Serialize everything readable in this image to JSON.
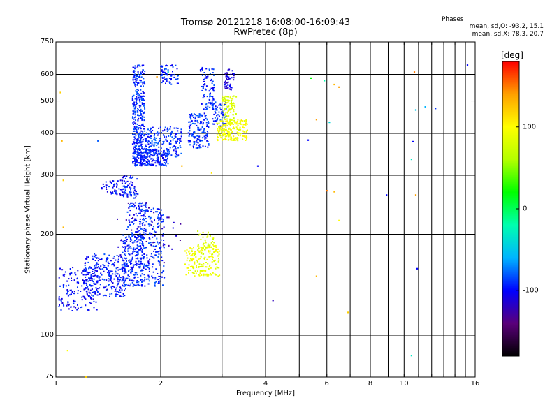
{
  "header": {
    "title": "Tromsø 20121218 16:08:00-16:09:43",
    "subtitle": "RwPretec (8p)",
    "stats_heading": "Phases",
    "stats_o": "mean, sd,O: -93.2, 15.1",
    "stats_x": "mean, sd,X: 78.3, 20.7"
  },
  "chart_data": {
    "type": "scatter",
    "xlabel": "Frequency [MHz]",
    "ylabel": "Stationary phase Virtual Height [km]",
    "x_scale": "log",
    "y_scale": "log",
    "xlim": [
      1,
      16
    ],
    "ylim": [
      75,
      750
    ],
    "x_ticks": [
      1,
      2,
      4,
      6,
      8,
      10,
      16
    ],
    "y_ticks": [
      75,
      100,
      200,
      300,
      400,
      500,
      600,
      750
    ],
    "x_grid": [
      1,
      2,
      3,
      4,
      5,
      6,
      7,
      8,
      9,
      10,
      11,
      12,
      13,
      14,
      15,
      16
    ],
    "y_grid": [
      100,
      200,
      300,
      400,
      500,
      600
    ],
    "colorbar": {
      "unit": "[deg]",
      "range": [
        -180,
        180
      ],
      "ticks": [
        -100,
        0,
        100
      ],
      "colors": [
        "#000000",
        "#5a007a",
        "#0000ff",
        "#00b4ff",
        "#00ffb0",
        "#00ff00",
        "#b4ff00",
        "#ffff00",
        "#ffa000",
        "#ff0000"
      ]
    },
    "o_trace_phase": -93.2,
    "x_trace_phase": 78.3,
    "clusters": [
      {
        "x": [
          1.02,
          1.32
        ],
        "y": [
          118,
          160
        ],
        "phase": -100,
        "count": 160
      },
      {
        "x": [
          1.2,
          1.6
        ],
        "y": [
          130,
          175
        ],
        "phase": -95,
        "count": 260
      },
      {
        "x": [
          1.55,
          1.8
        ],
        "y": [
          140,
          200
        ],
        "phase": -92,
        "count": 240
      },
      {
        "x": [
          1.75,
          2.05
        ],
        "y": [
          140,
          240
        ],
        "phase": -92,
        "count": 200
      },
      {
        "x": [
          1.6,
          1.82
        ],
        "y": [
          195,
          250
        ],
        "phase": -95,
        "count": 80
      },
      {
        "x": [
          1.35,
          1.65
        ],
        "y": [
          262,
          290
        ],
        "phase": -100,
        "count": 60
      },
      {
        "x": [
          1.55,
          1.72
        ],
        "y": [
          255,
          300
        ],
        "phase": -98,
        "count": 50
      },
      {
        "x": [
          1.66,
          1.8
        ],
        "y": [
          320,
          640
        ],
        "phase": -92,
        "count": 360
      },
      {
        "x": [
          1.68,
          2.1
        ],
        "y": [
          320,
          360
        ],
        "phase": -95,
        "count": 200
      },
      {
        "x": [
          1.8,
          2.3
        ],
        "y": [
          340,
          420
        ],
        "phase": -90,
        "count": 180
      },
      {
        "x": [
          2.0,
          2.25
        ],
        "y": [
          560,
          640
        ],
        "phase": -92,
        "count": 60
      },
      {
        "x": [
          2.4,
          2.75
        ],
        "y": [
          360,
          460
        ],
        "phase": -90,
        "count": 150
      },
      {
        "x": [
          2.6,
          2.85
        ],
        "y": [
          470,
          630
        ],
        "phase": -92,
        "count": 90
      },
      {
        "x": [
          2.8,
          3.1
        ],
        "y": [
          420,
          500
        ],
        "phase": -90,
        "count": 60
      },
      {
        "x": [
          3.05,
          3.25
        ],
        "y": [
          540,
          630
        ],
        "phase": -110,
        "count": 50
      },
      {
        "x": [
          2.9,
          3.55
        ],
        "y": [
          380,
          440
        ],
        "phase": 95,
        "count": 200
      },
      {
        "x": [
          3.0,
          3.3
        ],
        "y": [
          440,
          520
        ],
        "phase": 80,
        "count": 80
      },
      {
        "x": [
          2.35,
          2.95
        ],
        "y": [
          150,
          185
        ],
        "phase": 90,
        "count": 170
      },
      {
        "x": [
          2.55,
          2.85
        ],
        "y": [
          170,
          205
        ],
        "phase": 80,
        "count": 40
      },
      {
        "x": [
          1.5,
          2.3
        ],
        "y": [
          160,
          250
        ],
        "phase": -120,
        "count": 40
      }
    ],
    "isolated_points": [
      {
        "x": 5.4,
        "y": 585,
        "phase": 20
      },
      {
        "x": 5.9,
        "y": 575,
        "phase": -20
      },
      {
        "x": 6.3,
        "y": 560,
        "phase": 130
      },
      {
        "x": 6.5,
        "y": 550,
        "phase": 140
      },
      {
        "x": 10.7,
        "y": 610,
        "phase": 150
      },
      {
        "x": 11.5,
        "y": 480,
        "phase": -60
      },
      {
        "x": 12.3,
        "y": 475,
        "phase": -90
      },
      {
        "x": 10.8,
        "y": 470,
        "phase": -50
      },
      {
        "x": 15.2,
        "y": 640,
        "phase": -100
      },
      {
        "x": 5.6,
        "y": 440,
        "phase": 140
      },
      {
        "x": 6.1,
        "y": 432,
        "phase": -40
      },
      {
        "x": 10.6,
        "y": 378,
        "phase": -100
      },
      {
        "x": 10.5,
        "y": 335,
        "phase": -30
      },
      {
        "x": 5.3,
        "y": 382,
        "phase": -100
      },
      {
        "x": 6.0,
        "y": 270,
        "phase": 150
      },
      {
        "x": 6.3,
        "y": 268,
        "phase": 130
      },
      {
        "x": 8.9,
        "y": 262,
        "phase": -100
      },
      {
        "x": 10.8,
        "y": 262,
        "phase": 140
      },
      {
        "x": 6.5,
        "y": 220,
        "phase": 100
      },
      {
        "x": 10.9,
        "y": 158,
        "phase": -100
      },
      {
        "x": 5.6,
        "y": 150,
        "phase": 130
      },
      {
        "x": 4.2,
        "y": 127,
        "phase": -120
      },
      {
        "x": 6.9,
        "y": 117,
        "phase": 120
      },
      {
        "x": 10.5,
        "y": 87,
        "phase": -30
      },
      {
        "x": 1.08,
        "y": 90,
        "phase": 100
      },
      {
        "x": 1.05,
        "y": 210,
        "phase": 130
      },
      {
        "x": 1.05,
        "y": 290,
        "phase": 120
      },
      {
        "x": 1.04,
        "y": 380,
        "phase": 130
      },
      {
        "x": 1.03,
        "y": 530,
        "phase": 120
      },
      {
        "x": 2.1,
        "y": 610,
        "phase": -40
      },
      {
        "x": 1.95,
        "y": 590,
        "phase": 140
      },
      {
        "x": 2.3,
        "y": 320,
        "phase": 130
      },
      {
        "x": 2.8,
        "y": 305,
        "phase": 110
      },
      {
        "x": 1.32,
        "y": 380,
        "phase": -80
      },
      {
        "x": 3.8,
        "y": 320,
        "phase": -100
      },
      {
        "x": 1.22,
        "y": 75,
        "phase": 120
      }
    ]
  }
}
